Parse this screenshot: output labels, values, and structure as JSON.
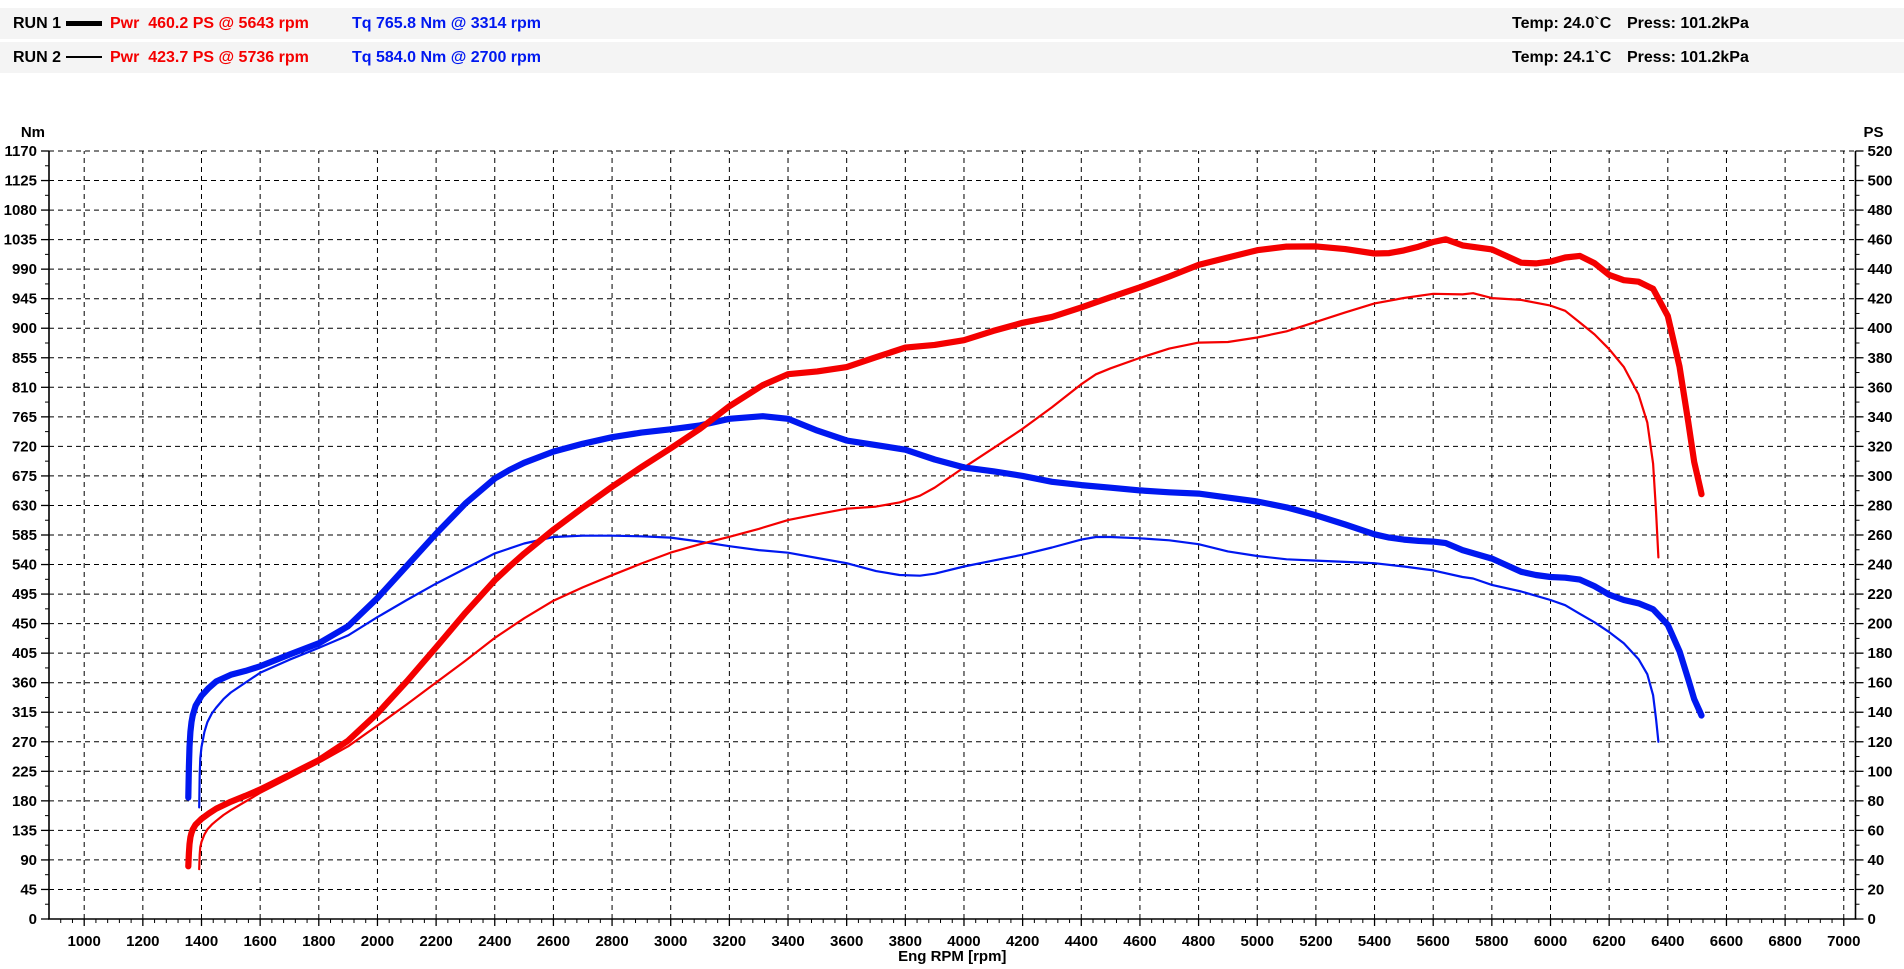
{
  "header": {
    "rows": [
      {
        "run": "RUN 1",
        "line_style": "thick",
        "pwr": "Pwr  460.2 PS @ 5643 rpm",
        "tq": "Tq 765.8 Nm @ 3314 rpm",
        "temp": "Temp: 24.0`C",
        "press": "Press: 101.2kPa"
      },
      {
        "run": "RUN 2",
        "line_style": "thin",
        "pwr": "Pwr  423.7 PS @ 5736 rpm",
        "tq": "Tq 584.0 Nm @ 2700 rpm",
        "temp": "Temp: 24.1`C",
        "press": "Press: 101.2kPa"
      }
    ]
  },
  "chart_data": {
    "type": "line",
    "xlabel": "Eng RPM [rpm]",
    "x_axis": {
      "min": 880,
      "max": 7040,
      "label_start": 1000,
      "label_end": 7000,
      "major_step": 200,
      "minor_step": 40
    },
    "left_axis": {
      "title": "Nm",
      "min": 0,
      "max": 1170,
      "major_step": 45,
      "minor_step": 22.5
    },
    "right_axis": {
      "title": "PS",
      "min": 0,
      "max": 520,
      "major_step": 20,
      "minor_step": 10
    },
    "grid": {
      "dashed": true,
      "dash": "5,4",
      "color": "#000000"
    },
    "colors": {
      "power": "#f40000",
      "torque": "#0018f0"
    },
    "peaks": {
      "run1": {
        "power_ps": 460.2,
        "power_rpm": 5643,
        "torque_nm": 765.8,
        "torque_rpm": 3314
      },
      "run2": {
        "power_ps": 423.7,
        "power_rpm": 5736,
        "torque_nm": 584.0,
        "torque_rpm": 2700
      }
    },
    "series": [
      {
        "id": "run2-torque",
        "run": "RUN 2",
        "quantity": "torque",
        "axis": "left",
        "style": "thin",
        "color": "#0018f0",
        "points": [
          [
            1392,
            170
          ],
          [
            1394,
            220
          ],
          [
            1396,
            245
          ],
          [
            1400,
            262
          ],
          [
            1410,
            285
          ],
          [
            1420,
            300
          ],
          [
            1435,
            313
          ],
          [
            1450,
            322
          ],
          [
            1475,
            335
          ],
          [
            1500,
            345
          ],
          [
            1600,
            375
          ],
          [
            1700,
            395
          ],
          [
            1800,
            413
          ],
          [
            1900,
            432
          ],
          [
            2000,
            460
          ],
          [
            2100,
            486
          ],
          [
            2200,
            511
          ],
          [
            2300,
            534
          ],
          [
            2400,
            557
          ],
          [
            2500,
            572
          ],
          [
            2600,
            582
          ],
          [
            2700,
            584
          ],
          [
            2800,
            584
          ],
          [
            2900,
            583
          ],
          [
            3000,
            581
          ],
          [
            3100,
            575
          ],
          [
            3200,
            568
          ],
          [
            3300,
            562
          ],
          [
            3400,
            558
          ],
          [
            3500,
            550
          ],
          [
            3600,
            542
          ],
          [
            3700,
            530
          ],
          [
            3780,
            524
          ],
          [
            3850,
            523
          ],
          [
            3900,
            526
          ],
          [
            4000,
            537
          ],
          [
            4100,
            546
          ],
          [
            4200,
            555
          ],
          [
            4300,
            566
          ],
          [
            4400,
            578
          ],
          [
            4450,
            582
          ],
          [
            4500,
            582
          ],
          [
            4600,
            580
          ],
          [
            4700,
            577
          ],
          [
            4800,
            571
          ],
          [
            4900,
            560
          ],
          [
            5000,
            553
          ],
          [
            5100,
            548
          ],
          [
            5200,
            546
          ],
          [
            5300,
            544
          ],
          [
            5400,
            542
          ],
          [
            5500,
            537
          ],
          [
            5600,
            531
          ],
          [
            5700,
            521
          ],
          [
            5736,
            518.8
          ],
          [
            5800,
            509
          ],
          [
            5900,
            499
          ],
          [
            6000,
            486
          ],
          [
            6050,
            478
          ],
          [
            6100,
            465
          ],
          [
            6150,
            452
          ],
          [
            6200,
            437
          ],
          [
            6250,
            420
          ],
          [
            6300,
            396
          ],
          [
            6330,
            373
          ],
          [
            6350,
            341
          ],
          [
            6360,
            304
          ],
          [
            6368,
            270
          ]
        ]
      },
      {
        "id": "run2-power",
        "run": "RUN 2",
        "quantity": "power",
        "axis": "right",
        "style": "thin",
        "color": "#f40000",
        "points": [
          [
            1392,
            33.7
          ],
          [
            1394,
            43.7
          ],
          [
            1396,
            48.7
          ],
          [
            1400,
            52.2
          ],
          [
            1410,
            57.2
          ],
          [
            1420,
            60.7
          ],
          [
            1435,
            63.9
          ],
          [
            1450,
            66.5
          ],
          [
            1475,
            70.4
          ],
          [
            1500,
            73.7
          ],
          [
            1600,
            85.4
          ],
          [
            1700,
            95.6
          ],
          [
            1800,
            105.8
          ],
          [
            1900,
            116.9
          ],
          [
            2000,
            131.0
          ],
          [
            2100,
            145.3
          ],
          [
            2200,
            160.1
          ],
          [
            2300,
            174.9
          ],
          [
            2400,
            190.3
          ],
          [
            2500,
            203.6
          ],
          [
            2600,
            215.5
          ],
          [
            2700,
            224.5
          ],
          [
            2800,
            232.8
          ],
          [
            2900,
            240.7
          ],
          [
            3000,
            248.1
          ],
          [
            3100,
            253.8
          ],
          [
            3200,
            258.8
          ],
          [
            3300,
            264.1
          ],
          [
            3400,
            270.1
          ],
          [
            3500,
            274.1
          ],
          [
            3600,
            277.8
          ],
          [
            3700,
            279.2
          ],
          [
            3780,
            282.1
          ],
          [
            3850,
            286.6
          ],
          [
            3900,
            292.1
          ],
          [
            4000,
            305.8
          ],
          [
            4100,
            318.8
          ],
          [
            4200,
            331.9
          ],
          [
            4300,
            346.5
          ],
          [
            4400,
            362.1
          ],
          [
            4450,
            368.8
          ],
          [
            4500,
            372.9
          ],
          [
            4600,
            379.9
          ],
          [
            4700,
            386.2
          ],
          [
            4800,
            390.3
          ],
          [
            4900,
            390.7
          ],
          [
            5000,
            393.7
          ],
          [
            5100,
            397.9
          ],
          [
            5200,
            404.3
          ],
          [
            5300,
            410.7
          ],
          [
            5400,
            416.8
          ],
          [
            5500,
            420.5
          ],
          [
            5600,
            423.3
          ],
          [
            5700,
            422.9
          ],
          [
            5736,
            423.7
          ],
          [
            5800,
            420.4
          ],
          [
            5900,
            419.2
          ],
          [
            6000,
            415.3
          ],
          [
            6050,
            411.8
          ],
          [
            6100,
            403.9
          ],
          [
            6150,
            395.8
          ],
          [
            6200,
            385.8
          ],
          [
            6250,
            373.8
          ],
          [
            6300,
            355.2
          ],
          [
            6330,
            336.2
          ],
          [
            6350,
            308.3
          ],
          [
            6360,
            275.3
          ],
          [
            6368,
            244.8
          ]
        ]
      },
      {
        "id": "run1-torque",
        "run": "RUN 1",
        "quantity": "torque",
        "axis": "left",
        "style": "thick",
        "color": "#0018f0",
        "points": [
          [
            1355,
            185
          ],
          [
            1357,
            232
          ],
          [
            1359,
            262
          ],
          [
            1362,
            285
          ],
          [
            1366,
            300
          ],
          [
            1370,
            310
          ],
          [
            1380,
            325
          ],
          [
            1400,
            340
          ],
          [
            1425,
            352
          ],
          [
            1450,
            362
          ],
          [
            1500,
            372
          ],
          [
            1550,
            378
          ],
          [
            1600,
            385
          ],
          [
            1700,
            403
          ],
          [
            1800,
            420
          ],
          [
            1900,
            446
          ],
          [
            2000,
            489
          ],
          [
            2100,
            538
          ],
          [
            2200,
            587
          ],
          [
            2300,
            633
          ],
          [
            2400,
            671
          ],
          [
            2450,
            684
          ],
          [
            2500,
            695
          ],
          [
            2600,
            712
          ],
          [
            2700,
            724
          ],
          [
            2800,
            734
          ],
          [
            2900,
            741
          ],
          [
            3000,
            746
          ],
          [
            3100,
            752
          ],
          [
            3200,
            762
          ],
          [
            3314,
            766
          ],
          [
            3400,
            762
          ],
          [
            3500,
            744
          ],
          [
            3600,
            729
          ],
          [
            3700,
            722
          ],
          [
            3800,
            715
          ],
          [
            3900,
            700
          ],
          [
            4000,
            688
          ],
          [
            4100,
            682
          ],
          [
            4200,
            675
          ],
          [
            4300,
            666
          ],
          [
            4400,
            661
          ],
          [
            4500,
            657
          ],
          [
            4600,
            653
          ],
          [
            4700,
            650
          ],
          [
            4800,
            648
          ],
          [
            4900,
            642
          ],
          [
            5000,
            636
          ],
          [
            5100,
            627
          ],
          [
            5200,
            615
          ],
          [
            5300,
            601
          ],
          [
            5400,
            586
          ],
          [
            5450,
            581
          ],
          [
            5500,
            578
          ],
          [
            5550,
            576
          ],
          [
            5600,
            575
          ],
          [
            5643,
            572.7
          ],
          [
            5700,
            562
          ],
          [
            5800,
            549
          ],
          [
            5900,
            529
          ],
          [
            5950,
            524
          ],
          [
            6000,
            521
          ],
          [
            6050,
            520
          ],
          [
            6100,
            517
          ],
          [
            6150,
            507
          ],
          [
            6200,
            494
          ],
          [
            6250,
            486
          ],
          [
            6300,
            481
          ],
          [
            6350,
            472
          ],
          [
            6400,
            448
          ],
          [
            6440,
            408
          ],
          [
            6470,
            365
          ],
          [
            6490,
            335
          ],
          [
            6510,
            315
          ],
          [
            6515,
            310
          ]
        ]
      },
      {
        "id": "run1-power",
        "run": "RUN 1",
        "quantity": "power",
        "axis": "right",
        "style": "thick",
        "color": "#f40000",
        "points": [
          [
            1355,
            35.7
          ],
          [
            1357,
            44.8
          ],
          [
            1359,
            50.7
          ],
          [
            1362,
            55.3
          ],
          [
            1366,
            58.3
          ],
          [
            1370,
            60.5
          ],
          [
            1380,
            63.9
          ],
          [
            1400,
            67.8
          ],
          [
            1425,
            71.4
          ],
          [
            1450,
            74.7
          ],
          [
            1500,
            79.4
          ],
          [
            1550,
            83.4
          ],
          [
            1600,
            87.7
          ],
          [
            1700,
            97.6
          ],
          [
            1800,
            107.6
          ],
          [
            1900,
            120.7
          ],
          [
            2000,
            139.3
          ],
          [
            2100,
            160.9
          ],
          [
            2200,
            183.9
          ],
          [
            2300,
            207.3
          ],
          [
            2400,
            229.3
          ],
          [
            2450,
            238.6
          ],
          [
            2500,
            247.4
          ],
          [
            2600,
            263.6
          ],
          [
            2700,
            278.4
          ],
          [
            2800,
            292.7
          ],
          [
            2900,
            306.0
          ],
          [
            3000,
            318.7
          ],
          [
            3100,
            331.9
          ],
          [
            3200,
            347.2
          ],
          [
            3314,
            361.5
          ],
          [
            3400,
            368.9
          ],
          [
            3500,
            370.8
          ],
          [
            3600,
            373.7
          ],
          [
            3700,
            380.4
          ],
          [
            3800,
            386.9
          ],
          [
            3900,
            388.7
          ],
          [
            4000,
            391.9
          ],
          [
            4100,
            398.2
          ],
          [
            4200,
            403.7
          ],
          [
            4300,
            407.7
          ],
          [
            4400,
            414.1
          ],
          [
            4500,
            421.0
          ],
          [
            4600,
            427.7
          ],
          [
            4700,
            435.0
          ],
          [
            4800,
            442.9
          ],
          [
            4900,
            447.9
          ],
          [
            5000,
            452.8
          ],
          [
            5100,
            455.3
          ],
          [
            5200,
            455.4
          ],
          [
            5300,
            453.6
          ],
          [
            5400,
            450.6
          ],
          [
            5450,
            450.9
          ],
          [
            5500,
            452.7
          ],
          [
            5550,
            455.2
          ],
          [
            5600,
            458.4
          ],
          [
            5643,
            460.2
          ],
          [
            5700,
            456.1
          ],
          [
            5800,
            453.4
          ],
          [
            5900,
            444.4
          ],
          [
            5950,
            443.9
          ],
          [
            6000,
            445.1
          ],
          [
            6050,
            447.9
          ],
          [
            6100,
            449.0
          ],
          [
            6150,
            444.0
          ],
          [
            6200,
            436.1
          ],
          [
            6250,
            432.5
          ],
          [
            6300,
            431.5
          ],
          [
            6350,
            426.7
          ],
          [
            6400,
            408.3
          ],
          [
            6440,
            374.1
          ],
          [
            6470,
            336.3
          ],
          [
            6490,
            309.5
          ],
          [
            6510,
            292.0
          ],
          [
            6515,
            287.6
          ]
        ]
      }
    ]
  }
}
